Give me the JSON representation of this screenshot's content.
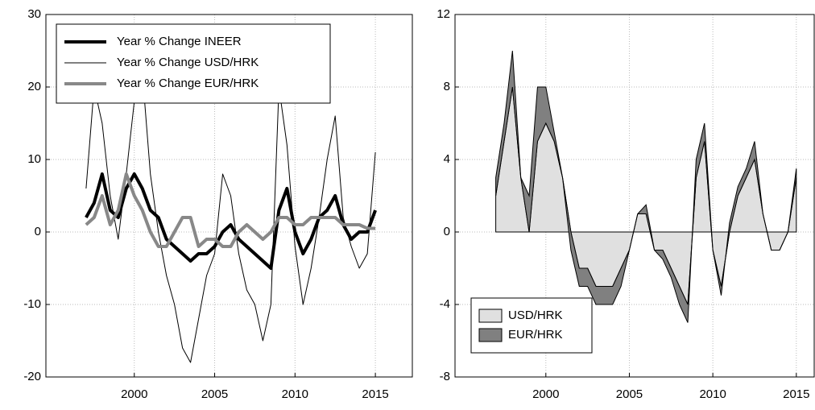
{
  "chart_data": [
    {
      "type": "line",
      "x": [
        1997,
        1997.5,
        1998,
        1998.5,
        1999,
        1999.5,
        2000,
        2000.5,
        2001,
        2001.5,
        2002,
        2002.5,
        2003,
        2003.5,
        2004,
        2004.5,
        2005,
        2005.5,
        2006,
        2006.5,
        2007,
        2007.5,
        2008,
        2008.5,
        2009,
        2009.5,
        2010,
        2010.5,
        2011,
        2011.5,
        2012,
        2012.5,
        2013,
        2013.5,
        2014,
        2014.5,
        2015
      ],
      "xlim": [
        1994.5,
        2017.3
      ],
      "xticks": [
        2000,
        2005,
        2010,
        2015
      ],
      "ylim": [
        -20,
        30
      ],
      "yticks": [
        -20,
        -10,
        0,
        10,
        20,
        30
      ],
      "grid": true,
      "legend": "upper left",
      "series": [
        {
          "name": "Year % Change INEER",
          "color": "#000000",
          "width": 4,
          "values": [
            2,
            4,
            8,
            3,
            2,
            6,
            8,
            6,
            3,
            2,
            -1,
            -2,
            -3,
            -4,
            -3,
            -3,
            -2,
            0,
            1,
            -1,
            -2,
            -3,
            -4,
            -5,
            3,
            6,
            0,
            -3,
            -1,
            2,
            3,
            5,
            1,
            -1,
            0,
            0,
            3
          ]
        },
        {
          "name": "Year % Change USD/HRK",
          "color": "#000000",
          "width": 1,
          "values": [
            6,
            20,
            15,
            5,
            -1,
            8,
            18,
            22,
            8,
            0,
            -6,
            -10,
            -16,
            -18,
            -12,
            -6,
            -3,
            8,
            5,
            -3,
            -8,
            -10,
            -15,
            -10,
            20,
            12,
            -2,
            -10,
            -5,
            2,
            10,
            16,
            2,
            -2,
            -5,
            -3,
            11
          ]
        },
        {
          "name": "Year % Change EUR/HRK",
          "color": "#888888",
          "width": 4,
          "values": [
            1,
            2,
            5,
            1,
            3,
            8,
            5,
            3,
            0,
            -2,
            -2,
            0,
            2,
            2,
            -2,
            -1,
            -1,
            -2,
            -2,
            0,
            1,
            0,
            -1,
            0,
            2,
            2,
            1,
            1,
            2,
            2,
            2,
            2,
            1,
            1,
            1,
            0.5,
            0.5
          ]
        }
      ]
    },
    {
      "type": "area",
      "x": [
        1997,
        1997.5,
        1998,
        1998.5,
        1999,
        1999.5,
        2000,
        2000.5,
        2001,
        2001.5,
        2002,
        2002.5,
        2003,
        2003.5,
        2004,
        2004.5,
        2005,
        2005.5,
        2006,
        2006.5,
        2007,
        2007.5,
        2008,
        2008.5,
        2009,
        2009.5,
        2010,
        2010.5,
        2011,
        2011.5,
        2012,
        2012.5,
        2013,
        2013.5,
        2014,
        2014.5,
        2015
      ],
      "xlim": [
        1994.56,
        2016.07
      ],
      "xticks": [
        2000,
        2005,
        2010,
        2015
      ],
      "ylim": [
        -8,
        12
      ],
      "yticks": [
        -8,
        -4,
        0,
        4,
        8,
        12
      ],
      "grid": true,
      "legend": "lower left",
      "series": [
        {
          "name": "USD/HRK",
          "color": "#e0e0e0",
          "values": [
            2,
            5,
            8,
            3,
            0,
            5,
            6,
            5,
            3,
            0,
            -2,
            -2,
            -3,
            -3,
            -3,
            -2,
            -1,
            1,
            1,
            -1,
            -1,
            -2,
            -3,
            -4,
            3,
            5,
            -1,
            -3,
            0,
            2,
            3,
            4,
            1,
            -1,
            -1,
            0,
            3
          ]
        },
        {
          "name": "EUR/HRK",
          "color": "#808080",
          "values": [
            1,
            1,
            2,
            0,
            2,
            3,
            2,
            0.5,
            0,
            -1,
            -1,
            -1,
            -1,
            -1,
            -1,
            -1,
            0,
            0,
            0.5,
            0,
            -0.5,
            -0.5,
            -1,
            -1,
            1,
            1,
            0,
            -0.5,
            0.5,
            0.5,
            0.5,
            1,
            0,
            0,
            0,
            0,
            0.5
          ]
        }
      ]
    }
  ]
}
